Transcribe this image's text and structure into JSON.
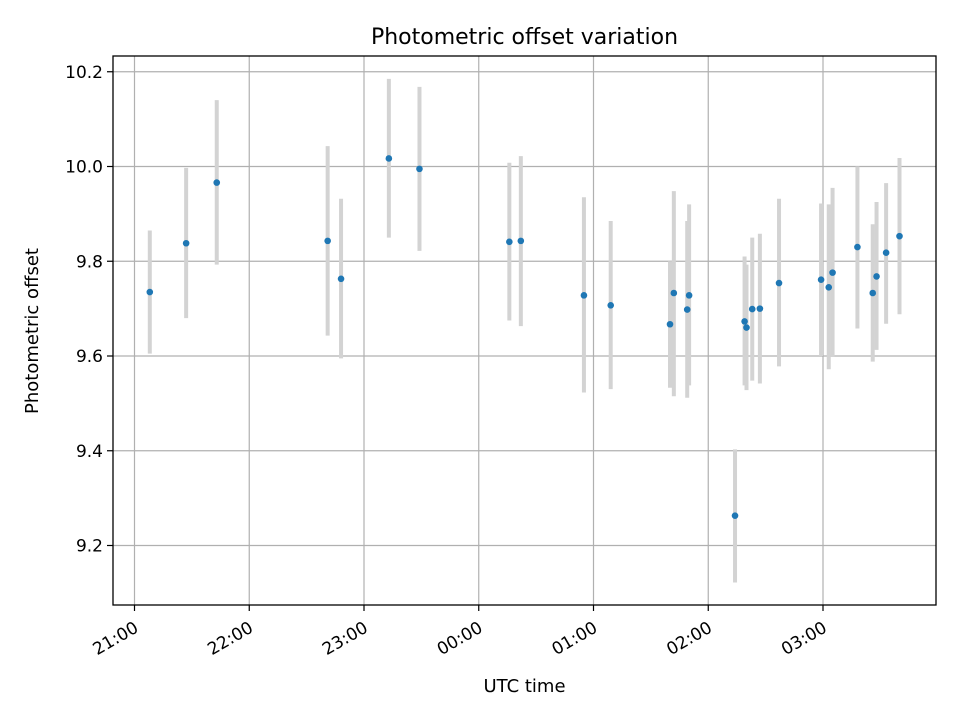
{
  "chart_data": {
    "type": "scatter",
    "title": "Photometric offset variation",
    "xlabel": "UTC time",
    "ylabel": "Photometric offset",
    "x_tick_labels": [
      "21:00",
      "22:00",
      "23:00",
      "00:00",
      "01:00",
      "02:00",
      "03:00"
    ],
    "y_tick_labels": [
      "9.2",
      "9.4",
      "9.6",
      "9.8",
      "10.0",
      "10.2"
    ],
    "grid": true,
    "series": [
      {
        "color": "#1f77b4",
        "error_bar_color": "#d3d3d3",
        "points": [
          {
            "x": "21:08",
            "y": 9.735,
            "ylow": 9.605,
            "yhigh": 9.865
          },
          {
            "x": "21:27",
            "y": 9.838,
            "ylow": 9.68,
            "yhigh": 9.997
          },
          {
            "x": "21:43",
            "y": 9.966,
            "ylow": 9.793,
            "yhigh": 10.14
          },
          {
            "x": "22:41",
            "y": 9.843,
            "ylow": 9.643,
            "yhigh": 10.043
          },
          {
            "x": "22:48",
            "y": 9.763,
            "ylow": 9.595,
            "yhigh": 9.932
          },
          {
            "x": "23:13",
            "y": 10.017,
            "ylow": 9.85,
            "yhigh": 10.185
          },
          {
            "x": "23:29",
            "y": 9.995,
            "ylow": 9.822,
            "yhigh": 10.168
          },
          {
            "x": "00:16",
            "y": 9.841,
            "ylow": 9.675,
            "yhigh": 10.008
          },
          {
            "x": "00:22",
            "y": 9.843,
            "ylow": 9.663,
            "yhigh": 10.022
          },
          {
            "x": "00:55",
            "y": 9.728,
            "ylow": 9.523,
            "yhigh": 9.935
          },
          {
            "x": "01:09",
            "y": 9.707,
            "ylow": 9.53,
            "yhigh": 9.885
          },
          {
            "x": "01:40",
            "y": 9.667,
            "ylow": 9.533,
            "yhigh": 9.8
          },
          {
            "x": "01:42",
            "y": 9.733,
            "ylow": 9.515,
            "yhigh": 9.948
          },
          {
            "x": "01:49",
            "y": 9.698,
            "ylow": 9.512,
            "yhigh": 9.885
          },
          {
            "x": "01:50",
            "y": 9.728,
            "ylow": 9.538,
            "yhigh": 9.92
          },
          {
            "x": "02:14",
            "y": 9.263,
            "ylow": 9.122,
            "yhigh": 9.403
          },
          {
            "x": "02:19",
            "y": 9.673,
            "ylow": 9.538,
            "yhigh": 9.81
          },
          {
            "x": "02:20",
            "y": 9.66,
            "ylow": 9.528,
            "yhigh": 9.793
          },
          {
            "x": "02:23",
            "y": 9.699,
            "ylow": 9.548,
            "yhigh": 9.85
          },
          {
            "x": "02:27",
            "y": 9.7,
            "ylow": 9.542,
            "yhigh": 9.858
          },
          {
            "x": "02:37",
            "y": 9.754,
            "ylow": 9.578,
            "yhigh": 9.932
          },
          {
            "x": "02:59",
            "y": 9.761,
            "ylow": 9.6,
            "yhigh": 9.922
          },
          {
            "x": "03:03",
            "y": 9.745,
            "ylow": 9.572,
            "yhigh": 9.92
          },
          {
            "x": "03:05",
            "y": 9.776,
            "ylow": 9.598,
            "yhigh": 9.955
          },
          {
            "x": "03:18",
            "y": 9.83,
            "ylow": 9.658,
            "yhigh": 10.0
          },
          {
            "x": "03:26",
            "y": 9.733,
            "ylow": 9.588,
            "yhigh": 9.878
          },
          {
            "x": "03:28",
            "y": 9.768,
            "ylow": 9.613,
            "yhigh": 9.925
          },
          {
            "x": "03:33",
            "y": 9.818,
            "ylow": 9.668,
            "yhigh": 9.965
          },
          {
            "x": "03:40",
            "y": 9.853,
            "ylow": 9.688,
            "yhigh": 10.018
          }
        ]
      }
    ]
  }
}
